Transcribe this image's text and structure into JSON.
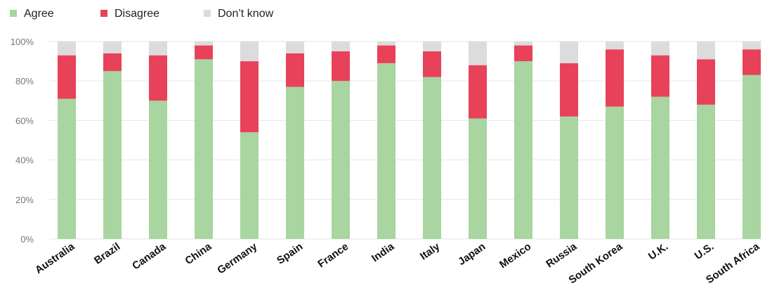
{
  "chart_data": {
    "type": "bar",
    "stacked": true,
    "categories": [
      "Australia",
      "Brazil",
      "Canada",
      "China",
      "Germany",
      "Spain",
      "France",
      "India",
      "Italy",
      "Japan",
      "Mexico",
      "Russia",
      "South Korea",
      "U.K.",
      "U.S.",
      "South Africa"
    ],
    "series": [
      {
        "name": "Agree",
        "color": "#a8d5a0",
        "values": [
          71,
          85,
          70,
          91,
          54,
          77,
          80,
          89,
          82,
          61,
          90,
          62,
          67,
          72,
          68,
          83
        ]
      },
      {
        "name": "Disagree",
        "color": "#e8415a",
        "values": [
          22,
          9,
          23,
          7,
          36,
          17,
          15,
          9,
          13,
          27,
          8,
          27,
          29,
          21,
          23,
          13
        ]
      },
      {
        "name": "Don’t know",
        "color": "#dcdcdc",
        "values": [
          7,
          6,
          7,
          2,
          10,
          6,
          5,
          2,
          5,
          12,
          2,
          11,
          4,
          7,
          9,
          4
        ]
      }
    ],
    "yticks": [
      "0%",
      "20%",
      "40%",
      "60%",
      "80%",
      "100%"
    ],
    "ylim": [
      0,
      100
    ],
    "legend_position": "top-left",
    "grid": true
  }
}
